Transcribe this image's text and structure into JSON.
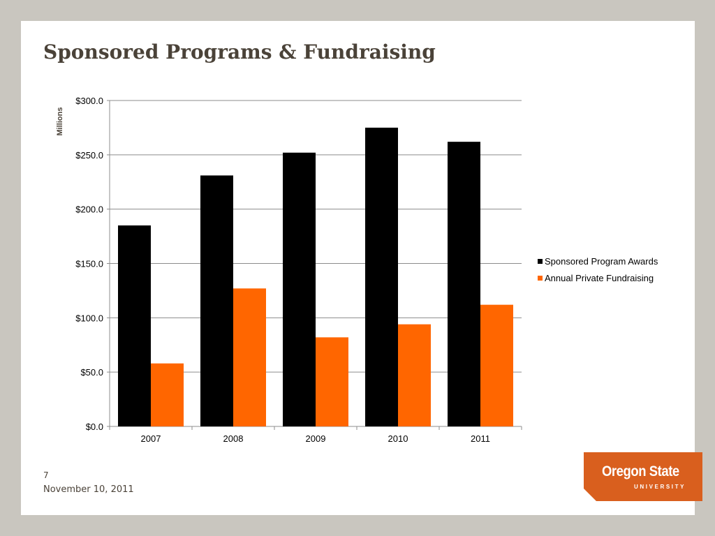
{
  "slide": {
    "title": "Sponsored Programs & Fundraising",
    "number": "7",
    "date": "November 10, 2011"
  },
  "logo": {
    "main": "Oregon State",
    "sub": "UNIVERSITY"
  },
  "colors": {
    "series_1": "#000000",
    "series_2": "#ff6600",
    "gridline": "#8c8c8c",
    "axis": "#8c8c8c",
    "text": "#000000",
    "ylabel": "#4a4238",
    "logo": "#d95f1e"
  },
  "chart_data": {
    "type": "bar",
    "title": "",
    "xlabel": "",
    "ylabel": "Millions",
    "categories": [
      "2007",
      "2008",
      "2009",
      "2010",
      "2011"
    ],
    "series": [
      {
        "name": "Sponsored Program Awards",
        "values": [
          185,
          231,
          252,
          275,
          262
        ]
      },
      {
        "name": "Annual Private Fundraising",
        "values": [
          58,
          127,
          82,
          94,
          112
        ]
      }
    ],
    "ylim": [
      0,
      300
    ],
    "yticks": [
      0,
      50,
      100,
      150,
      200,
      250,
      300
    ],
    "ytick_labels": [
      "$0.0",
      "$50.0",
      "$100.0",
      "$150.0",
      "$200.0",
      "$250.0",
      "$300.0"
    ],
    "grid": true,
    "legend_position": "right"
  }
}
